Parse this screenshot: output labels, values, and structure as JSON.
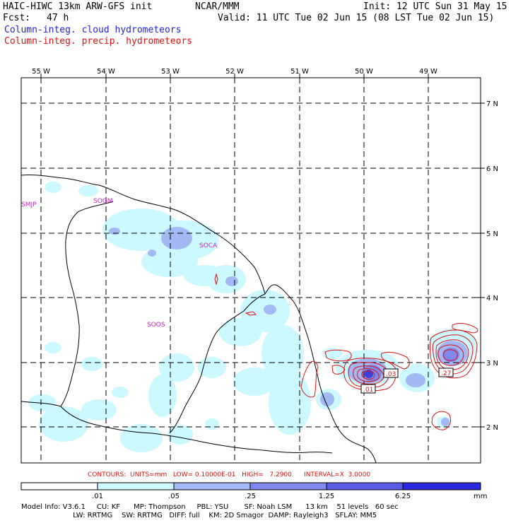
{
  "header": {
    "model": "HAIC-HIWC 13km ARW-GFS init",
    "org": "NCAR/MMM",
    "init": "Init: 12 UTC Sun 31 May 15",
    "fcst_label": "Fcst:",
    "fcst_value": "47 h",
    "valid": "Valid: 11 UTC Tue 02 Jun 15 (08 LST Tue 02 Jun 15)",
    "field_cloud": "Column-integ. cloud hydrometeors",
    "field_precip": "Column-integ. precip. hydrometeors"
  },
  "map": {
    "lon_labels": [
      "55 W",
      "54 W",
      "53 W",
      "52 W",
      "51 W",
      "50 W",
      "49 W"
    ],
    "lat_labels": [
      "7 N",
      "6 N",
      "5 N",
      "4 N",
      "3 N",
      "2 N"
    ],
    "stations": [
      "SMJP",
      "SOGM",
      "SOCA",
      "SOOS"
    ],
    "contour_labels": [
      ".01",
      ".03",
      ".27"
    ],
    "colors": {
      "cloud_light": "#ccf8ff",
      "cloud_mid": "#a4b8f4",
      "cloud_strong": "#7f88ee",
      "cloud_max": "#3f3fe0",
      "precip": "#dd1111",
      "station": "#cc22cc"
    }
  },
  "contours_text": "CONTOURS:  UNITS=mm   LOW= 0.10000E-01   HIGH=   7.2900      INTERVAL=X  3.0000",
  "colorbar": {
    "ticks": [
      ".01",
      ".05",
      ".25",
      "1.25",
      "6.25"
    ],
    "unit": "mm",
    "colors": [
      "#ffffff",
      "#ccf8ff",
      "#a4b8f4",
      "#7f88ee",
      "#5a5ae6",
      "#2a2ae0"
    ]
  },
  "footer": {
    "line1": "Model Info: V3.6.1     CU: KF      MP: Thompson     PBL: YSU       SF: Noah LSM      13 km    51 levels   60 sec",
    "line2": "                       LW: RRTMG    SW: RRTMG   DIFF: full    KM: 2D Smagor  DAMP: Rayleigh3   SFLAY: MM5"
  }
}
